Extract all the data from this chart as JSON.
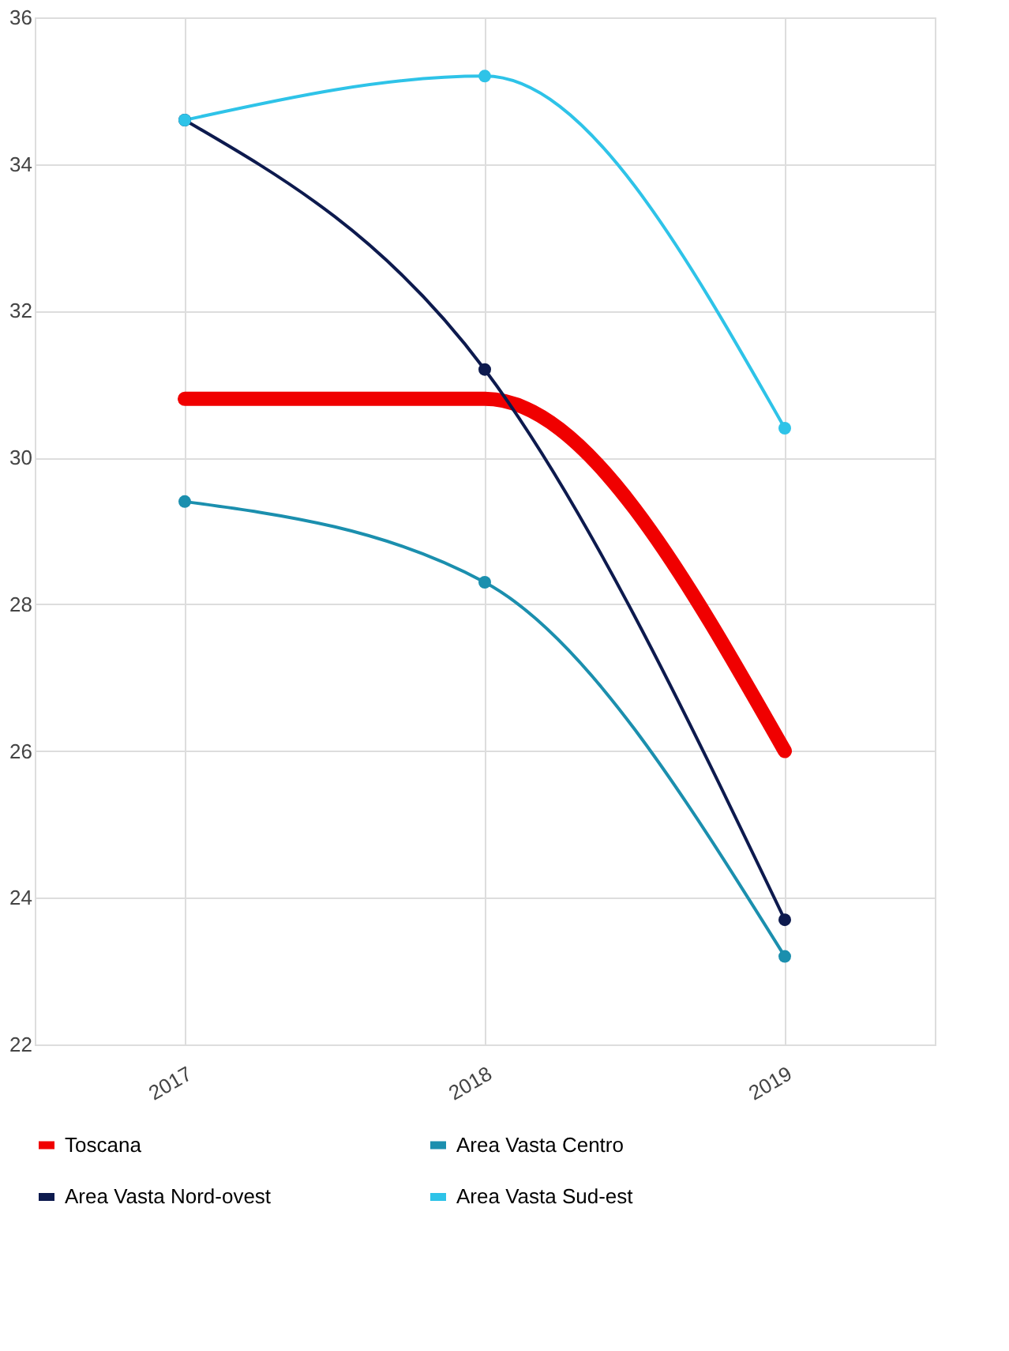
{
  "chart_data": {
    "type": "line",
    "categories": [
      "2017",
      "2018",
      "2019"
    ],
    "ylim": [
      22,
      36
    ],
    "yticks": [
      22,
      24,
      26,
      28,
      30,
      32,
      34,
      36
    ],
    "grid": true,
    "legend": "bottom",
    "marker": "circle",
    "line_style": "solid",
    "series": [
      {
        "name": "Toscana",
        "color": "#f00000",
        "values": [
          30.8,
          30.8,
          26.0
        ],
        "marker": "none"
      },
      {
        "name": "Area Vasta Centro",
        "color": "#1b8fae",
        "values": [
          29.4,
          28.3,
          23.2
        ]
      },
      {
        "name": "Area Vasta Nord-ovest",
        "color": "#0d1a4e",
        "values": [
          34.6,
          31.2,
          23.7
        ]
      },
      {
        "name": "Area Vasta Sud-est",
        "color": "#2ec3e8",
        "values": [
          34.6,
          35.2,
          30.4
        ]
      }
    ]
  }
}
